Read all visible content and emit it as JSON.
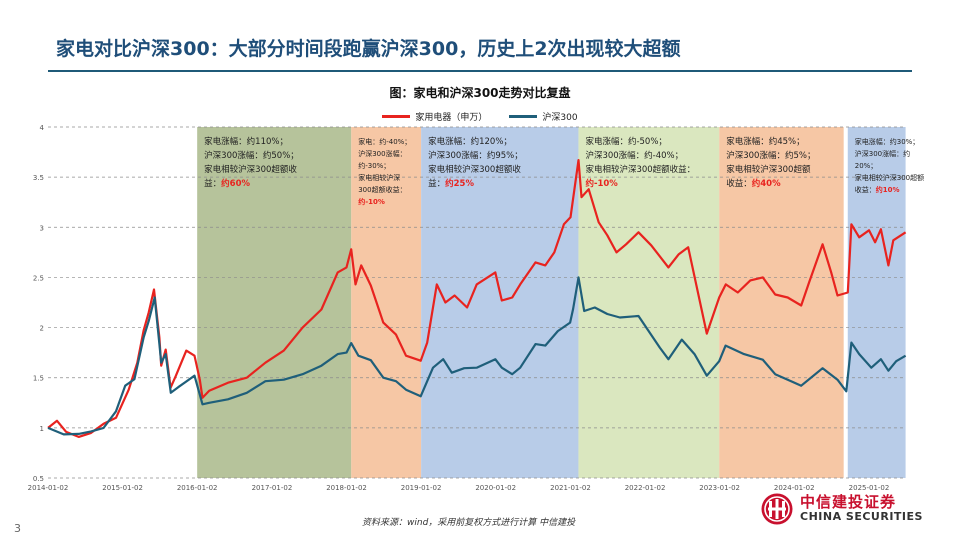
{
  "page": {
    "title": "家电对比沪深300：大部分时间段跑赢沪深300，历史上2次出现较大超额",
    "source": "资料来源：wind，采用前复权方式进行计算 中信建投",
    "page_number": "3",
    "logo": {
      "cn": "中信建投证券",
      "en": "CHINA SECURITIES",
      "icon": "china-securities-logo-icon",
      "color": "#c8102e"
    }
  },
  "chart_data": {
    "type": "line",
    "title": "图：家电和沪深300走势对比复盘",
    "xlabel": "",
    "ylabel": "",
    "ylim": [
      0.5,
      4
    ],
    "yticks": [
      "0.5",
      "1",
      "1.5",
      "2",
      "2.5",
      "3",
      "3.5",
      "4"
    ],
    "xticks": [
      "2014-01-02",
      "2015-01-02",
      "2016-01-02",
      "2017-01-02",
      "2018-01-02",
      "2019-01-02",
      "2020-01-02",
      "2021-01-02",
      "2022-01-02",
      "2023-01-02",
      "2024-01-02",
      "2025-01-02"
    ],
    "grid": "horizontal-dashed",
    "legend_position": "top-center",
    "series": [
      {
        "name": "家用电器（申万）",
        "color": "#e8231f",
        "points": [
          [
            "2014-01-02",
            1.0
          ],
          [
            "2014-02-15",
            1.05
          ],
          [
            "2014-04-01",
            0.96
          ],
          [
            "2014-06-01",
            0.93
          ],
          [
            "2014-08-01",
            0.95
          ],
          [
            "2014-10-01",
            1.02
          ],
          [
            "2014-12-01",
            1.1
          ],
          [
            "2015-02-01",
            1.4
          ],
          [
            "2015-03-15",
            1.65
          ],
          [
            "2015-04-15",
            1.95
          ],
          [
            "2015-05-10",
            2.15
          ],
          [
            "2015-06-05",
            2.4
          ],
          [
            "2015-07-01",
            1.9
          ],
          [
            "2015-07-10",
            1.6
          ],
          [
            "2015-08-01",
            1.78
          ],
          [
            "2015-08-25",
            1.42
          ],
          [
            "2015-09-20",
            1.52
          ],
          [
            "2015-11-10",
            1.75
          ],
          [
            "2015-12-20",
            1.72
          ],
          [
            "2016-01-15",
            1.5
          ],
          [
            "2016-01-28",
            1.3
          ],
          [
            "2016-03-01",
            1.35
          ],
          [
            "2016-06-01",
            1.45
          ],
          [
            "2016-09-01",
            1.52
          ],
          [
            "2016-12-01",
            1.65
          ],
          [
            "2017-03-01",
            1.75
          ],
          [
            "2017-06-01",
            2.0
          ],
          [
            "2017-09-01",
            2.2
          ],
          [
            "2017-11-20",
            2.55
          ],
          [
            "2018-01-02",
            2.58
          ],
          [
            "2018-01-25",
            2.78
          ],
          [
            "2018-02-15",
            2.45
          ],
          [
            "2018-03-15",
            2.62
          ],
          [
            "2018-05-01",
            2.4
          ],
          [
            "2018-07-01",
            2.05
          ],
          [
            "2018-09-01",
            1.95
          ],
          [
            "2018-10-20",
            1.72
          ],
          [
            "2018-12-31",
            1.65
          ],
          [
            "2019-02-01",
            1.85
          ],
          [
            "2019-03-20",
            2.45
          ],
          [
            "2019-05-01",
            2.25
          ],
          [
            "2019-06-15",
            2.3
          ],
          [
            "2019-08-15",
            2.2
          ],
          [
            "2019-10-01",
            2.45
          ],
          [
            "2019-12-31",
            2.55
          ],
          [
            "2020-02-01",
            2.25
          ],
          [
            "2020-03-23",
            2.3
          ],
          [
            "2020-05-01",
            2.45
          ],
          [
            "2020-07-15",
            2.65
          ],
          [
            "2020-09-01",
            2.6
          ],
          [
            "2020-10-15",
            2.75
          ],
          [
            "2020-12-01",
            3.05
          ],
          [
            "2021-01-02",
            3.1
          ],
          [
            "2021-02-10",
            3.65
          ],
          [
            "2021-02-25",
            3.3
          ],
          [
            "2021-04-01",
            3.4
          ],
          [
            "2021-05-20",
            3.05
          ],
          [
            "2021-07-01",
            2.9
          ],
          [
            "2021-08-15",
            2.75
          ],
          [
            "2021-10-01",
            2.85
          ],
          [
            "2021-12-01",
            2.95
          ],
          [
            "2022-02-01",
            2.8
          ],
          [
            "2022-04-26",
            2.6
          ],
          [
            "2022-06-15",
            2.75
          ],
          [
            "2022-08-01",
            2.8
          ],
          [
            "2022-10-31",
            1.92
          ],
          [
            "2022-12-31",
            2.3
          ],
          [
            "2023-02-01",
            2.45
          ],
          [
            "2023-04-01",
            2.35
          ],
          [
            "2023-06-01",
            2.45
          ],
          [
            "2023-08-01",
            2.5
          ],
          [
            "2023-10-01",
            2.35
          ],
          [
            "2023-12-01",
            2.3
          ],
          [
            "2024-02-05",
            2.2
          ],
          [
            "2024-03-15",
            2.45
          ],
          [
            "2024-05-20",
            2.85
          ],
          [
            "2024-07-01",
            2.55
          ],
          [
            "2024-08-01",
            2.3
          ],
          [
            "2024-09-20",
            2.35
          ],
          [
            "2024-10-08",
            3.05
          ],
          [
            "2024-11-15",
            2.9
          ],
          [
            "2025-01-02",
            2.95
          ],
          [
            "2025-02-01",
            2.85
          ],
          [
            "2025-03-01",
            3.0
          ],
          [
            "2025-04-07",
            2.62
          ],
          [
            "2025-05-01",
            2.85
          ],
          [
            "2025-06-30",
            2.95
          ]
        ]
      },
      {
        "name": "沪深300",
        "color": "#1f5f7a",
        "points": [
          [
            "2014-01-02",
            1.0
          ],
          [
            "2014-03-20",
            0.92
          ],
          [
            "2014-06-01",
            0.94
          ],
          [
            "2014-08-01",
            0.98
          ],
          [
            "2014-10-01",
            1.0
          ],
          [
            "2014-12-01",
            1.15
          ],
          [
            "2015-01-15",
            1.42
          ],
          [
            "2015-03-01",
            1.5
          ],
          [
            "2015-04-15",
            1.9
          ],
          [
            "2015-05-10",
            2.05
          ],
          [
            "2015-06-08",
            2.3
          ],
          [
            "2015-07-01",
            1.85
          ],
          [
            "2015-07-10",
            1.65
          ],
          [
            "2015-08-01",
            1.72
          ],
          [
            "2015-08-26",
            1.35
          ],
          [
            "2015-10-01",
            1.42
          ],
          [
            "2015-12-20",
            1.52
          ],
          [
            "2016-01-28",
            1.22
          ],
          [
            "2016-03-01",
            1.25
          ],
          [
            "2016-06-01",
            1.3
          ],
          [
            "2016-09-01",
            1.35
          ],
          [
            "2016-12-01",
            1.45
          ],
          [
            "2017-03-01",
            1.48
          ],
          [
            "2017-06-01",
            1.55
          ],
          [
            "2017-09-01",
            1.62
          ],
          [
            "2017-11-20",
            1.72
          ],
          [
            "2018-01-02",
            1.75
          ],
          [
            "2018-01-25",
            1.86
          ],
          [
            "2018-03-01",
            1.72
          ],
          [
            "2018-05-01",
            1.66
          ],
          [
            "2018-07-01",
            1.5
          ],
          [
            "2018-09-01",
            1.48
          ],
          [
            "2018-10-20",
            1.38
          ],
          [
            "2018-12-31",
            1.3
          ],
          [
            "2019-03-01",
            1.6
          ],
          [
            "2019-04-20",
            1.7
          ],
          [
            "2019-06-01",
            1.55
          ],
          [
            "2019-08-01",
            1.58
          ],
          [
            "2019-10-01",
            1.6
          ],
          [
            "2019-12-31",
            1.7
          ],
          [
            "2020-02-01",
            1.6
          ],
          [
            "2020-03-23",
            1.52
          ],
          [
            "2020-05-01",
            1.6
          ],
          [
            "2020-07-15",
            1.85
          ],
          [
            "2020-09-01",
            1.82
          ],
          [
            "2020-11-01",
            1.95
          ],
          [
            "2020-12-31",
            2.05
          ],
          [
            "2021-01-15",
            2.2
          ],
          [
            "2021-02-10",
            2.5
          ],
          [
            "2021-03-10",
            2.15
          ],
          [
            "2021-05-01",
            2.2
          ],
          [
            "2021-07-01",
            2.15
          ],
          [
            "2021-09-01",
            2.1
          ],
          [
            "2021-12-01",
            2.1
          ],
          [
            "2022-03-15",
            1.8
          ],
          [
            "2022-04-26",
            1.7
          ],
          [
            "2022-07-01",
            1.88
          ],
          [
            "2022-09-01",
            1.72
          ],
          [
            "2022-10-31",
            1.52
          ],
          [
            "2022-12-31",
            1.68
          ],
          [
            "2023-01-31",
            1.82
          ],
          [
            "2023-05-01",
            1.72
          ],
          [
            "2023-08-01",
            1.68
          ],
          [
            "2023-10-01",
            1.55
          ],
          [
            "2024-02-05",
            1.42
          ],
          [
            "2024-05-20",
            1.58
          ],
          [
            "2024-08-01",
            1.48
          ],
          [
            "2024-09-13",
            1.38
          ],
          [
            "2024-10-08",
            1.85
          ],
          [
            "2024-11-15",
            1.72
          ],
          [
            "2025-01-13",
            1.6
          ],
          [
            "2025-03-01",
            1.7
          ],
          [
            "2025-04-07",
            1.57
          ],
          [
            "2025-05-15",
            1.65
          ],
          [
            "2025-06-30",
            1.72
          ]
        ]
      }
    ],
    "periods": [
      {
        "start": "2016-01-02",
        "end": "2018-01-25",
        "color": "#a9b98a",
        "lines": [
          {
            "text": "家电涨幅：约110%；"
          },
          {
            "text": "沪深300涨幅：约50%；"
          },
          {
            "text": "家电相较沪深300超额收"
          },
          {
            "text": "益：",
            "hl": "约60%"
          }
        ]
      },
      {
        "start": "2018-01-25",
        "end": "2019-01-02",
        "color": "#f4bd95",
        "lines": [
          {
            "text": "家电：约-40%；"
          },
          {
            "text": "沪深300涨幅："
          },
          {
            "text": "约-30%；"
          },
          {
            "text": "家电相较沪深"
          },
          {
            "text": "300超额收益："
          },
          {
            "hl": "约-10%"
          }
        ]
      },
      {
        "start": "2019-01-02",
        "end": "2021-02-10",
        "color": "#abc3e4",
        "lines": [
          {
            "text": "家电涨幅：约120%；"
          },
          {
            "text": "沪深300涨幅：约95%；"
          },
          {
            "text": "家电相较沪深300超额收"
          },
          {
            "text": "益：",
            "hl": "约25%"
          }
        ]
      },
      {
        "start": "2021-02-10",
        "end": "2022-12-31",
        "color": "#d3e3b4",
        "lines": [
          {
            "text": "家电涨幅：约-50%；"
          },
          {
            "text": "沪深300涨幅：约-40%；"
          },
          {
            "text": "家电相较沪深300超额收益："
          },
          {
            "hl": "约-10%"
          }
        ]
      },
      {
        "start": "2022-12-31",
        "end": "2024-08-31",
        "color": "#f4bd95",
        "lines": [
          {
            "text": "家电涨幅：约45%；"
          },
          {
            "text": "沪深300涨幅：约5%；"
          },
          {
            "text": "家电相较沪深300超额"
          },
          {
            "text": "收益：",
            "hl": "约40%"
          }
        ]
      },
      {
        "start": "2024-09-20",
        "end": "2025-06-30",
        "color": "#abc3e4",
        "lines": [
          {
            "text": "家电涨幅：约30%；"
          },
          {
            "text": "沪深300涨幅：约"
          },
          {
            "text": "20%；"
          },
          {
            "text": "家电相较沪深300超额"
          },
          {
            "text": "收益：",
            "hl": "约10%"
          }
        ]
      }
    ],
    "highlight_color": "#e8231f"
  }
}
